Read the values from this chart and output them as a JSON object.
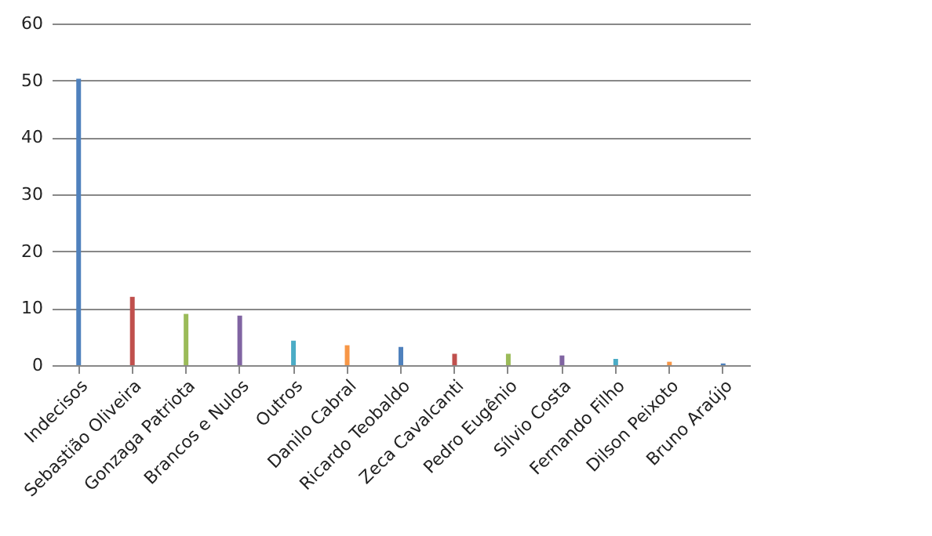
{
  "chart_data": {
    "type": "bar",
    "categories": [
      "Indecisos",
      "Sebastião Oliveira",
      "Gonzaga Patriota",
      "Brancos e Nulos",
      "Outros",
      "Danilo Cabral",
      "Ricardo Teobaldo",
      "Zeca Cavalcanti",
      "Pedro Eugênio",
      "Sílvio Costa",
      "Fernando Filho",
      "Dilson Peixoto",
      "Bruno Araújo"
    ],
    "values": [
      50.3,
      12,
      9,
      8.7,
      4.3,
      3.5,
      3.2,
      2,
      2,
      1.7,
      1.1,
      0.6,
      0.3
    ],
    "colors": [
      "#4f81bd",
      "#c0504d",
      "#9bbb59",
      "#8064a2",
      "#4bacc6",
      "#f79646",
      "#4f81bd",
      "#c0504d",
      "#9bbb59",
      "#8064a2",
      "#4bacc6",
      "#f79646",
      "#4f81bd"
    ],
    "ylim": [
      0,
      60
    ],
    "yticks": [
      0,
      10,
      20,
      30,
      40,
      50,
      60
    ],
    "grid": "y"
  }
}
